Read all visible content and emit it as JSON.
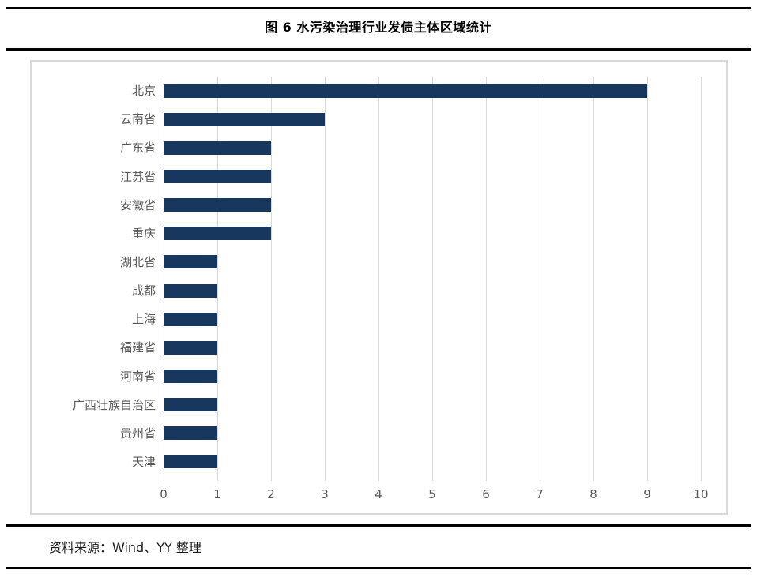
{
  "page": {
    "figure_title": "图 6 水污染治理行业发债主体区域统计",
    "source_note": "资料来源：Wind、YY 整理"
  },
  "chart_data": {
    "type": "bar",
    "orientation": "horizontal",
    "title": "图 6 水污染治理行业发债主体区域统计",
    "categories": [
      "北京",
      "云南省",
      "广东省",
      "江苏省",
      "安徽省",
      "重庆",
      "湖北省",
      "成都",
      "上海",
      "福建省",
      "河南省",
      "广西壮族自治区",
      "贵州省",
      "天津"
    ],
    "values": [
      9,
      3,
      2,
      2,
      2,
      2,
      1,
      1,
      1,
      1,
      1,
      1,
      1,
      1
    ],
    "xlabel": "",
    "ylabel": "",
    "xlim": [
      0,
      10
    ],
    "x_ticks": [
      0,
      1,
      2,
      3,
      4,
      5,
      6,
      7,
      8,
      9,
      10
    ],
    "grid": true,
    "legend": false,
    "colors": {
      "bar": "#17375E",
      "gridline": "#D9D9D9",
      "axis_text": "#595959",
      "box_border": "#D9D9D9"
    }
  }
}
